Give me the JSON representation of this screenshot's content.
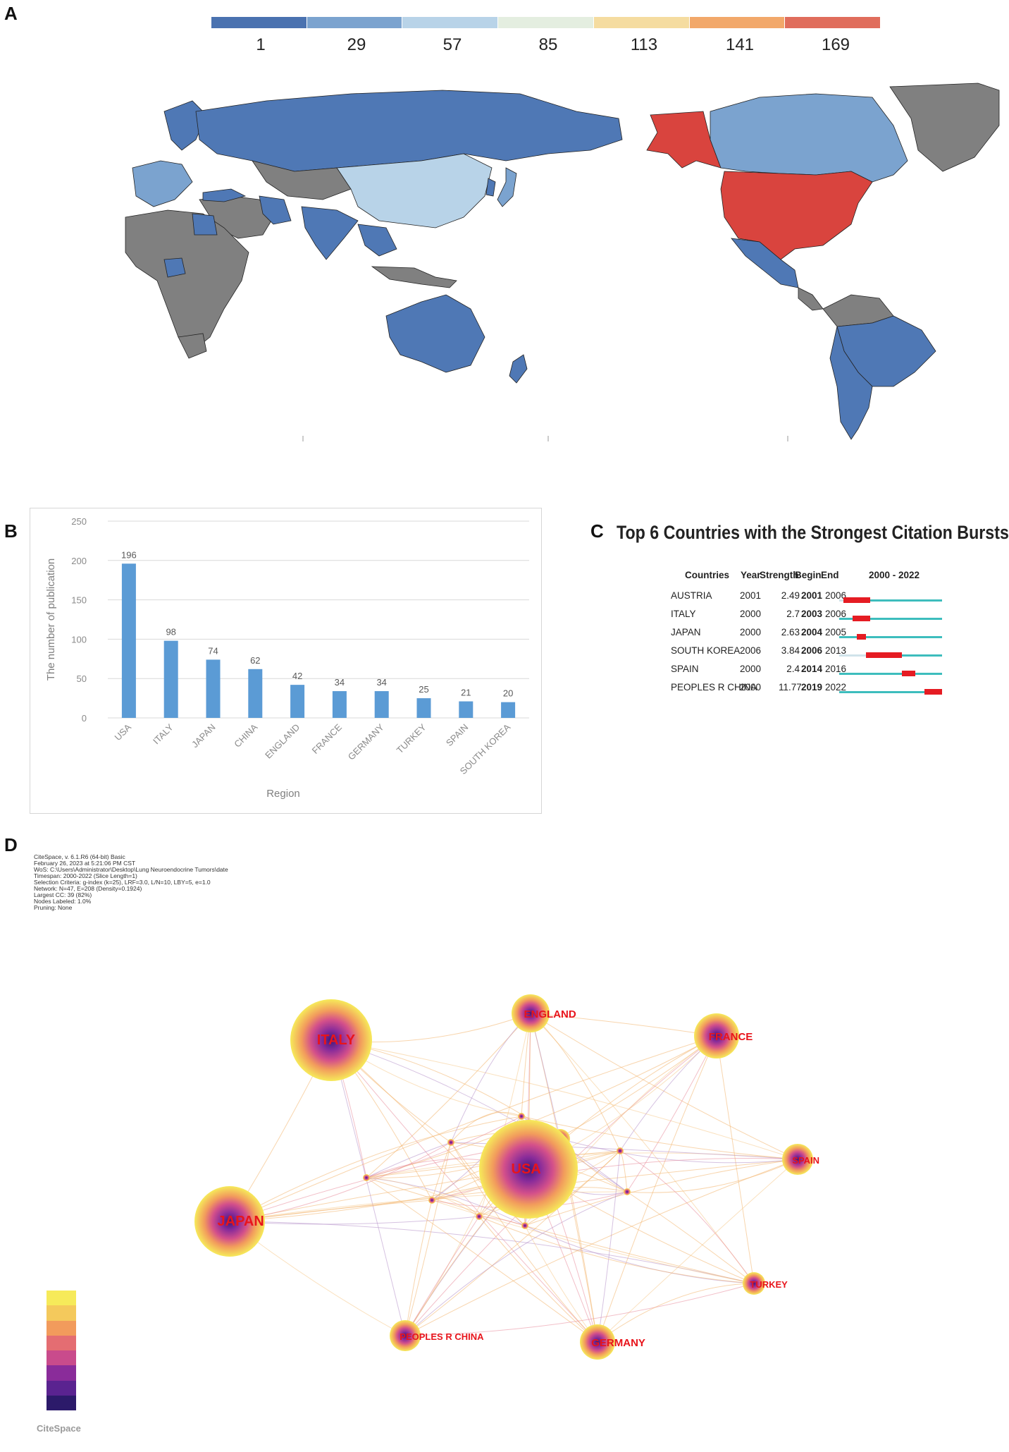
{
  "panels": {
    "a": "A",
    "b": "B",
    "c": "C",
    "d": "D"
  },
  "map_legend": {
    "labels": [
      "1",
      "29",
      "57",
      "85",
      "113",
      "141",
      "169"
    ],
    "colors": [
      "#4a72b0",
      "#7ba3cf",
      "#b8d3e8",
      "#e4eee0",
      "#f5dca0",
      "#f2a86a",
      "#e06d5c"
    ]
  },
  "map_colors": {
    "high": "#d9443e",
    "mid": "#b8d3e8",
    "low": "#4f78b5",
    "lowmid": "#7ba3cf",
    "none": "#808080",
    "ocean": "#ffffff"
  },
  "chart_data": {
    "type": "bar",
    "categories": [
      "USA",
      "ITALY",
      "JAPAN",
      "CHINA",
      "ENGLAND",
      "FRANCE",
      "GERMANY",
      "TURKEY",
      "SPAIN",
      "SOUTH KOREA"
    ],
    "values": [
      196,
      98,
      74,
      62,
      42,
      34,
      34,
      25,
      21,
      20
    ],
    "xlabel": "Region",
    "ylabel": "The number of publication",
    "ylim": [
      0,
      250
    ],
    "yticks": [
      "0",
      "50",
      "100",
      "150",
      "200",
      "250"
    ],
    "bar_color": "#5b9bd5",
    "grid": true
  },
  "bursts": {
    "title": "Top 6 Countries with the Strongest Citation Bursts",
    "headers": {
      "country": "Countries",
      "year": "Year",
      "strength": "Strength",
      "begin": "Begin",
      "end": "End",
      "range": "2000 - 2022"
    },
    "range_start": 2000,
    "range_end": 2022,
    "rows": [
      {
        "country": "AUSTRIA",
        "year": "2001",
        "strength": "2.49",
        "begin": "2001",
        "end": "2006"
      },
      {
        "country": "ITALY",
        "year": "2000",
        "strength": "2.7",
        "begin": "2003",
        "end": "2006"
      },
      {
        "country": "JAPAN",
        "year": "2000",
        "strength": "2.63",
        "begin": "2004",
        "end": "2005"
      },
      {
        "country": "SOUTH KOREA",
        "year": "2006",
        "strength": "3.84",
        "begin": "2006",
        "end": "2013"
      },
      {
        "country": "SPAIN",
        "year": "2000",
        "strength": "2.4",
        "begin": "2014",
        "end": "2016"
      },
      {
        "country": "PEOPLES R CHINA",
        "year": "2000",
        "strength": "11.77",
        "begin": "2019",
        "end": "2022"
      }
    ],
    "colors": {
      "line": "#3dbdbd",
      "burst": "#e51c23",
      "pre": "#d0e3ea"
    }
  },
  "network": {
    "info": [
      "CiteSpace, v. 6.1.R6 (64-bit) Basic",
      "February 26, 2023 at 5:21:06 PM CST",
      "WoS: C:\\Users\\Administrator\\Desktop\\Lung Neuroendocrine Tumors\\date",
      "Timespan: 2000-2022 (Slice Length=1)",
      "Selection Criteria: g-index (k=25), LRF=3.0, L/N=10, LBY=5, e=1.0",
      "Network: N=47, E=208 (Density=0.1924)",
      "Largest CC: 39 (82%)",
      "Nodes Labeled: 1.0%",
      "Pruning: None"
    ],
    "nodes": [
      {
        "label": "USA",
        "size": 70
      },
      {
        "label": "ITALY",
        "size": 58
      },
      {
        "label": "JAPAN",
        "size": 50
      },
      {
        "label": "ENGLAND",
        "size": 27
      },
      {
        "label": "FRANCE",
        "size": 32
      },
      {
        "label": "SPAIN",
        "size": 22
      },
      {
        "label": "PEOPLES R CHINA",
        "size": 22
      },
      {
        "label": "GERMANY",
        "size": 25
      },
      {
        "label": "TURKEY",
        "size": 16
      }
    ],
    "label_color": "#e8141b",
    "logo_text": "CiteSpace"
  }
}
